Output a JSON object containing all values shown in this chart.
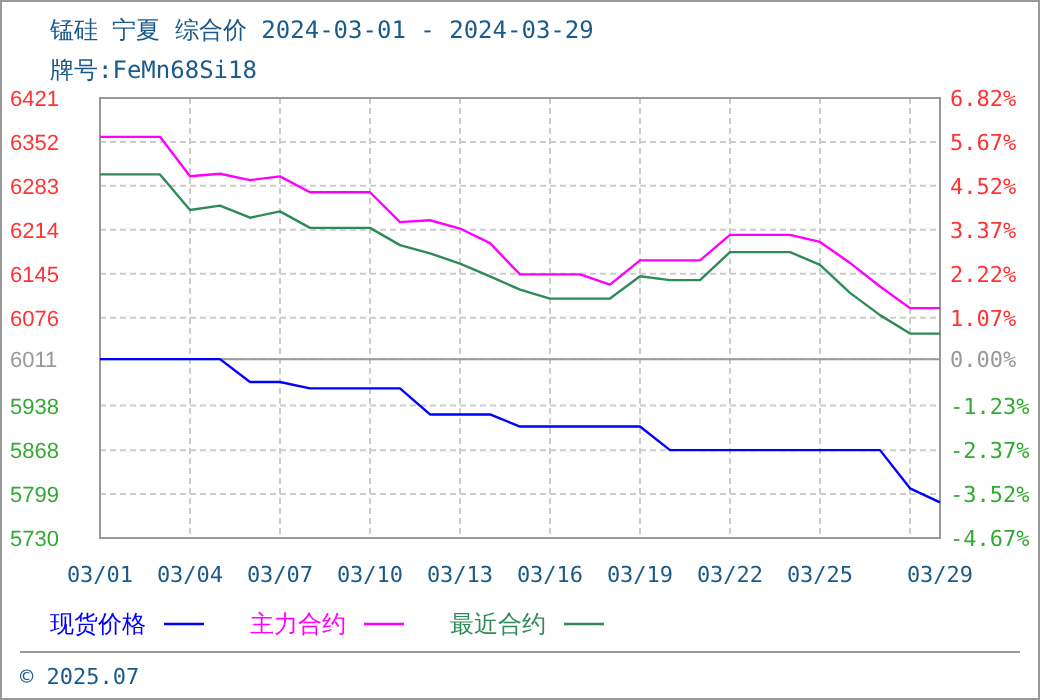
{
  "chart_data": {
    "type": "line",
    "title": "锰硅 宁夏 综合价 2024-03-01 - 2024-03-29",
    "subtitle": "牌号:FeMn68Si18",
    "x": [
      "2024-03-01",
      "2024-03-02",
      "2024-03-03",
      "2024-03-04",
      "2024-03-05",
      "2024-03-06",
      "2024-03-07",
      "2024-03-08",
      "2024-03-09",
      "2024-03-10",
      "2024-03-11",
      "2024-03-12",
      "2024-03-13",
      "2024-03-14",
      "2024-03-15",
      "2024-03-16",
      "2024-03-17",
      "2024-03-18",
      "2024-03-19",
      "2024-03-20",
      "2024-03-21",
      "2024-03-22",
      "2024-03-23",
      "2024-03-24",
      "2024-03-25",
      "2024-03-26",
      "2024-03-27",
      "2024-03-28",
      "2024-03-29"
    ],
    "series": [
      {
        "name": "现货价格",
        "color": "#0000ff",
        "values": [
          6011,
          6011,
          6011,
          6011,
          6011,
          5975,
          5975,
          5965,
          5965,
          5965,
          5965,
          5924,
          5924,
          5924,
          5905,
          5905,
          5905,
          5905,
          5905,
          5868,
          5868,
          5868,
          5868,
          5868,
          5868,
          5868,
          5868,
          5808,
          5786
        ]
      },
      {
        "name": "主力合约",
        "color": "#ff00ff",
        "values": [
          6360,
          6360,
          6360,
          6298,
          6302,
          6292,
          6298,
          6273,
          6273,
          6273,
          6226,
          6229,
          6216,
          6193,
          6144,
          6144,
          6144,
          6128,
          6166,
          6166,
          6166,
          6206,
          6206,
          6206,
          6195,
          6162,
          6125,
          6091,
          6091
        ]
      },
      {
        "name": "最近合约",
        "color": "#2e8b57",
        "values": [
          6301,
          6301,
          6301,
          6245,
          6252,
          6233,
          6243,
          6217,
          6217,
          6217,
          6190,
          6177,
          6161,
          6141,
          6120,
          6106,
          6106,
          6106,
          6141,
          6135,
          6135,
          6179,
          6179,
          6179,
          6159,
          6115,
          6080,
          6051,
          6051
        ]
      }
    ],
    "xlim": [
      "2024-03-01",
      "2024-03-29"
    ],
    "xticks": [
      {
        "value": "2024-03-01",
        "label": "03/01"
      },
      {
        "value": "2024-03-04",
        "label": "03/04"
      },
      {
        "value": "2024-03-07",
        "label": "03/07"
      },
      {
        "value": "2024-03-10",
        "label": "03/10"
      },
      {
        "value": "2024-03-13",
        "label": "03/13"
      },
      {
        "value": "2024-03-16",
        "label": "03/16"
      },
      {
        "value": "2024-03-19",
        "label": "03/19"
      },
      {
        "value": "2024-03-22",
        "label": "03/22"
      },
      {
        "value": "2024-03-25",
        "label": "03/25"
      },
      {
        "value": "2024-03-28",
        "label": null
      },
      {
        "value": "2024-03-29",
        "label": "03/29"
      }
    ],
    "ylim": [
      5730,
      6421
    ],
    "yticks": [
      5730,
      5799,
      5868,
      5938,
      6011,
      6076,
      6145,
      6214,
      6283,
      6352,
      6421
    ],
    "y2lim": [
      -4.67,
      6.82
    ],
    "y2ticks": [
      {
        "value": -4.67,
        "label": "-4.67%"
      },
      {
        "value": -3.52,
        "label": "-3.52%"
      },
      {
        "value": -2.37,
        "label": "-2.37%"
      },
      {
        "value": -1.23,
        "label": "-1.23%"
      },
      {
        "value": 0,
        "label": "0.00%"
      },
      {
        "value": 1.07,
        "label": "1.07%"
      },
      {
        "value": 2.22,
        "label": "2.22%"
      },
      {
        "value": 3.37,
        "label": "3.37%"
      },
      {
        "value": 4.52,
        "label": "4.52%"
      },
      {
        "value": 5.67,
        "label": "5.67%"
      },
      {
        "value": 6.82,
        "label": "6.82%"
      }
    ],
    "grid": true,
    "legend": "bottom",
    "line_style": "solid",
    "marker": "none",
    "annotations": [
      "© 2025.07"
    ]
  }
}
